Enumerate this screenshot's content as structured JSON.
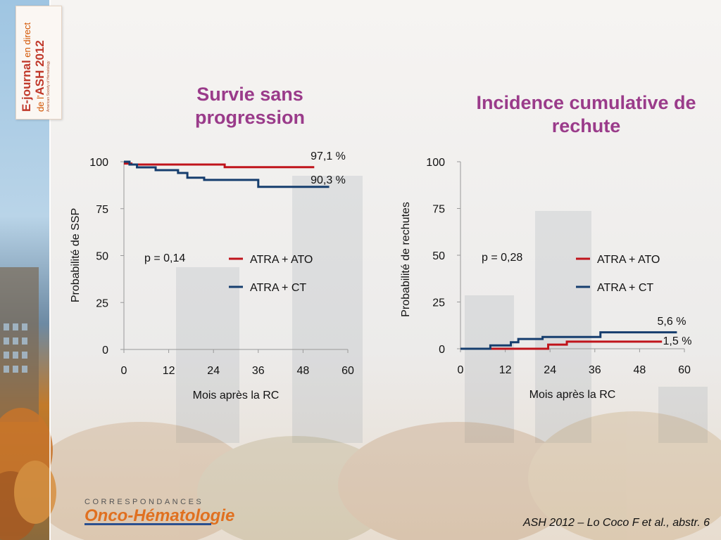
{
  "banner": {
    "line1_bold": "E-journal",
    "line1_light": " en direct",
    "line2_light": "de l'",
    "line2_bold": "ASH 2012",
    "sub": "American Society of Hematology"
  },
  "logo": {
    "top": "CORRESPONDANCES",
    "main": "Onco-Hématologie"
  },
  "footer": {
    "reference": "ASH 2012 – Lo Coco F et al., abstr. 6"
  },
  "colors": {
    "title": "#9a3b8a",
    "ato": "#c0141b",
    "ct": "#163e6e"
  },
  "chart_data": [
    {
      "type": "line",
      "title": "Survie sans progression",
      "xlabel": "Mois après la RC",
      "ylabel": "Probabilité de SSP",
      "xlim": [
        0,
        60
      ],
      "ylim": [
        0,
        100
      ],
      "xticks": [
        "0",
        "12",
        "24",
        "36",
        "48",
        "60"
      ],
      "yticks": [
        "0",
        "25",
        "50",
        "75",
        "100"
      ],
      "step": true,
      "series": [
        {
          "name": "ATRA + ATO",
          "color": "#c0141b",
          "x": [
            0,
            1,
            2,
            23,
            27,
            51
          ],
          "y": [
            99,
            99,
            98.5,
            98.5,
            97.1,
            97.1
          ]
        },
        {
          "name": "ATRA + CT",
          "color": "#163e6e",
          "x": [
            0,
            1.5,
            3.5,
            8.5,
            14.5,
            17,
            21.5,
            36,
            55
          ],
          "y": [
            100,
            98.5,
            97,
            95.5,
            94,
            91.5,
            90.3,
            86.6,
            86.6
          ]
        }
      ],
      "annotations": [
        "97,1 %",
        "90,3 %"
      ],
      "pvalue": "p = 0,14",
      "legend": "middle-right"
    },
    {
      "type": "line",
      "title": "Incidence cumulative de rechute",
      "xlabel": "Mois après la RC",
      "ylabel": "Probabilité de rechutes",
      "xlim": [
        0,
        60
      ],
      "ylim": [
        0,
        100
      ],
      "xticks": [
        "0",
        "12",
        "24",
        "36",
        "48",
        "60"
      ],
      "yticks": [
        "0",
        "25",
        "50",
        "75",
        "100"
      ],
      "step": true,
      "series": [
        {
          "name": "ATRA + ATO",
          "color": "#c0141b",
          "x": [
            0,
            23.5,
            28.5,
            54
          ],
          "y": [
            0,
            2.2,
            3.8,
            3.8
          ]
        },
        {
          "name": "ATRA + CT",
          "color": "#163e6e",
          "x": [
            0,
            8,
            13.5,
            15.5,
            22,
            37.5,
            58
          ],
          "y": [
            0,
            1.8,
            3.5,
            5.2,
            6.3,
            8.8,
            8.8
          ]
        }
      ],
      "annotations": [
        "5,6 %",
        "1,5 %"
      ],
      "pvalue": "p = 0,28",
      "legend": "middle-right"
    }
  ]
}
